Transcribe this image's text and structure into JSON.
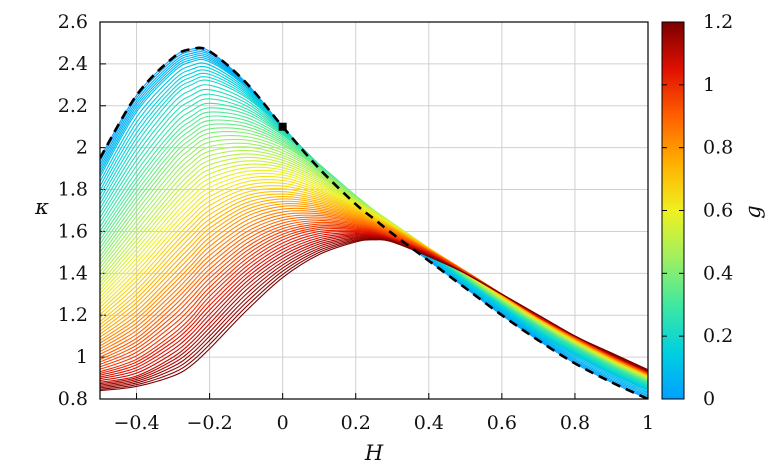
{
  "chart_data": {
    "type": "line",
    "title": "",
    "xlabel": "H",
    "ylabel": "κ",
    "xlim": [
      -0.5,
      1.0
    ],
    "ylim": [
      0.8,
      2.6
    ],
    "xticks": [
      "−0.4",
      "−0.2",
      "0",
      "0.2",
      "0.4",
      "0.6",
      "0.8",
      "1"
    ],
    "xtick_values": [
      -0.4,
      -0.2,
      0,
      0.2,
      0.4,
      0.6,
      0.8,
      1.0
    ],
    "yticks": [
      "0.8",
      "1",
      "1.2",
      "1.4",
      "1.6",
      "1.8",
      "2",
      "2.2",
      "2.4",
      "2.6"
    ],
    "ytick_values": [
      0.8,
      1.0,
      1.2,
      1.4,
      1.6,
      1.8,
      2.0,
      2.2,
      2.4,
      2.6
    ],
    "grid": true,
    "series_description": "family of curves colored by g from 0 to 1.2",
    "family": {
      "g_values": [
        0.0,
        0.1,
        0.2,
        0.3,
        0.4,
        0.5,
        0.6,
        0.7,
        0.8,
        0.9,
        1.0,
        1.1,
        1.2
      ],
      "x": [
        -0.5,
        -0.4,
        -0.3,
        -0.25,
        -0.2,
        -0.1,
        0.0,
        0.1,
        0.2,
        0.25,
        0.3,
        0.4,
        0.5,
        0.6,
        0.7,
        0.8,
        0.9,
        1.0
      ],
      "curves": [
        [
          1.95,
          2.25,
          2.43,
          2.47,
          2.46,
          2.31,
          2.1,
          1.9,
          1.73,
          1.66,
          1.59,
          1.46,
          1.33,
          1.2,
          1.08,
          0.97,
          0.88,
          0.8
        ],
        [
          1.86,
          2.17,
          2.36,
          2.41,
          2.41,
          2.29,
          2.1,
          1.91,
          1.75,
          1.68,
          1.61,
          1.48,
          1.35,
          1.23,
          1.11,
          1.01,
          0.92,
          0.84
        ],
        [
          1.73,
          2.02,
          2.24,
          2.3,
          2.32,
          2.24,
          2.09,
          1.92,
          1.76,
          1.69,
          1.62,
          1.5,
          1.37,
          1.25,
          1.13,
          1.03,
          0.94,
          0.86
        ],
        [
          1.6,
          1.86,
          2.08,
          2.15,
          2.19,
          2.16,
          2.06,
          1.92,
          1.77,
          1.7,
          1.63,
          1.51,
          1.38,
          1.26,
          1.15,
          1.05,
          0.96,
          0.88
        ],
        [
          1.48,
          1.72,
          1.94,
          2.02,
          2.07,
          2.07,
          2.01,
          1.9,
          1.77,
          1.7,
          1.64,
          1.52,
          1.39,
          1.27,
          1.16,
          1.06,
          0.97,
          0.89
        ],
        [
          1.37,
          1.58,
          1.79,
          1.88,
          1.94,
          1.97,
          1.94,
          1.86,
          1.75,
          1.7,
          1.64,
          1.52,
          1.4,
          1.28,
          1.17,
          1.07,
          0.98,
          0.9
        ],
        [
          1.27,
          1.45,
          1.65,
          1.74,
          1.81,
          1.87,
          1.87,
          1.81,
          1.73,
          1.68,
          1.63,
          1.52,
          1.4,
          1.29,
          1.18,
          1.08,
          0.99,
          0.91
        ],
        [
          1.17,
          1.32,
          1.51,
          1.6,
          1.68,
          1.77,
          1.79,
          1.76,
          1.7,
          1.66,
          1.62,
          1.52,
          1.41,
          1.29,
          1.18,
          1.08,
          0.99,
          0.91
        ],
        [
          1.08,
          1.2,
          1.37,
          1.46,
          1.55,
          1.67,
          1.72,
          1.71,
          1.67,
          1.64,
          1.61,
          1.51,
          1.41,
          1.3,
          1.19,
          1.09,
          1.0,
          0.92
        ],
        [
          1.0,
          1.09,
          1.24,
          1.33,
          1.42,
          1.56,
          1.64,
          1.66,
          1.64,
          1.62,
          1.59,
          1.51,
          1.41,
          1.3,
          1.19,
          1.09,
          1.0,
          0.92
        ],
        [
          0.93,
          0.99,
          1.11,
          1.19,
          1.29,
          1.45,
          1.56,
          1.61,
          1.61,
          1.6,
          1.57,
          1.5,
          1.4,
          1.3,
          1.19,
          1.1,
          1.01,
          0.93
        ],
        [
          0.88,
          0.91,
          1.0,
          1.07,
          1.16,
          1.34,
          1.47,
          1.55,
          1.58,
          1.58,
          1.56,
          1.49,
          1.4,
          1.3,
          1.2,
          1.1,
          1.01,
          0.93
        ],
        [
          0.84,
          0.86,
          0.91,
          0.96,
          1.04,
          1.22,
          1.38,
          1.49,
          1.55,
          1.56,
          1.55,
          1.48,
          1.4,
          1.3,
          1.2,
          1.1,
          1.02,
          0.94
        ]
      ]
    },
    "envelope": {
      "name": "",
      "style": "black dashed",
      "x": [
        -0.5,
        -0.4,
        -0.3,
        -0.25,
        -0.2,
        -0.1,
        0.0,
        0.1,
        0.2,
        0.25,
        0.3,
        0.4,
        0.5,
        0.6,
        0.7,
        0.8,
        0.9,
        1.0
      ],
      "y": [
        1.95,
        2.25,
        2.43,
        2.47,
        2.46,
        2.31,
        2.1,
        1.9,
        1.73,
        1.66,
        1.59,
        1.46,
        1.33,
        1.2,
        1.08,
        0.97,
        0.88,
        0.8
      ]
    },
    "marker": {
      "x": 0.0,
      "y": 2.1,
      "shape": "square",
      "color": "#000000"
    },
    "colorbar": {
      "label": "g",
      "min": 0,
      "max": 1.2,
      "ticks": [
        "0",
        "0.2",
        "0.4",
        "0.6",
        "0.8",
        "1",
        "1.2"
      ],
      "tick_values": [
        0,
        0.2,
        0.4,
        0.6,
        0.8,
        1.0,
        1.2
      ],
      "colormap": [
        "#00a0ff",
        "#00d0e0",
        "#40e8a0",
        "#a0f060",
        "#f0f020",
        "#ffb000",
        "#ff6000",
        "#e01000",
        "#7a0000"
      ]
    }
  }
}
